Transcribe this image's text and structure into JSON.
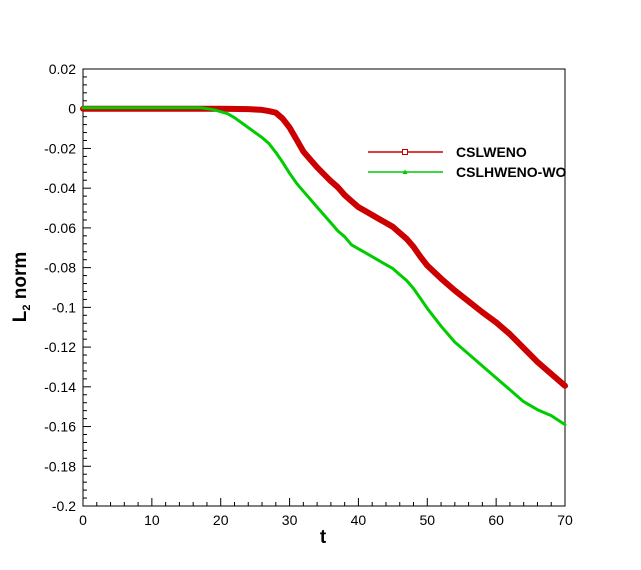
{
  "chart_data": {
    "type": "line",
    "title": "",
    "xlabel": "t",
    "ylabel_main": "L",
    "ylabel_sub": "2",
    "ylabel_rest": " norm",
    "xlim": [
      0,
      70
    ],
    "ylim": [
      -0.2,
      0.02
    ],
    "xticks": [
      0,
      10,
      20,
      30,
      40,
      50,
      60,
      70
    ],
    "xtick_labels": [
      "0",
      "10",
      "20",
      "30",
      "40",
      "50",
      "60",
      "70"
    ],
    "yticks": [
      0.02,
      0,
      -0.02,
      -0.04,
      -0.06,
      -0.08,
      -0.1,
      -0.12,
      -0.14,
      -0.16,
      -0.18,
      -0.2
    ],
    "ytick_labels": [
      "0.02",
      "0",
      "-0.02",
      "-0.04",
      "-0.06",
      "-0.08",
      "-0.1",
      "-0.12",
      "-0.14",
      "-0.16",
      "-0.18",
      "-0.2"
    ],
    "grid": false,
    "legend_position": "top-right",
    "series": [
      {
        "name": "CSLWENO",
        "color": "#cc0000",
        "marker": "square",
        "x": [
          0,
          10,
          20,
          24,
          26,
          27,
          28,
          29,
          30,
          31,
          32,
          33,
          34,
          35,
          36,
          37,
          38,
          39,
          40,
          41,
          42,
          43,
          44,
          45,
          46,
          47,
          48,
          49,
          50,
          52,
          54,
          56,
          58,
          60,
          62,
          64,
          66,
          68,
          70
        ],
        "values": [
          0.0,
          0.0,
          0.0,
          -0.0002,
          -0.0006,
          -0.0012,
          -0.002,
          -0.005,
          -0.0095,
          -0.0155,
          -0.0215,
          -0.0255,
          -0.0295,
          -0.033,
          -0.0365,
          -0.0395,
          -0.0435,
          -0.0465,
          -0.0495,
          -0.0515,
          -0.0535,
          -0.0555,
          -0.0575,
          -0.0595,
          -0.0625,
          -0.0655,
          -0.0695,
          -0.0745,
          -0.079,
          -0.0855,
          -0.0915,
          -0.097,
          -0.1025,
          -0.1075,
          -0.1135,
          -0.1205,
          -0.1275,
          -0.1335,
          -0.1395
        ]
      },
      {
        "name": "CSLHWENO-WO",
        "color": "#00cc00",
        "marker": "triangle",
        "x": [
          0,
          10,
          17,
          19,
          21,
          22,
          23,
          24,
          25,
          26,
          27,
          28,
          29,
          30,
          31,
          32,
          33,
          34,
          35,
          36,
          37,
          38,
          39,
          40,
          41,
          42,
          43,
          44,
          45,
          46,
          47,
          48,
          49,
          50,
          52,
          54,
          56,
          58,
          60,
          62,
          64,
          66,
          68,
          70
        ],
        "values": [
          0.0005,
          0.0005,
          0.0005,
          -0.0005,
          -0.0025,
          -0.0045,
          -0.007,
          -0.0095,
          -0.012,
          -0.0145,
          -0.0175,
          -0.022,
          -0.027,
          -0.0325,
          -0.0375,
          -0.0415,
          -0.0455,
          -0.0495,
          -0.0535,
          -0.0575,
          -0.0615,
          -0.0645,
          -0.0685,
          -0.0705,
          -0.0725,
          -0.0745,
          -0.0765,
          -0.0785,
          -0.0805,
          -0.0835,
          -0.0865,
          -0.0905,
          -0.0955,
          -0.1005,
          -0.1095,
          -0.1175,
          -0.1235,
          -0.1295,
          -0.1355,
          -0.1415,
          -0.1475,
          -0.1515,
          -0.1545,
          -0.159
        ]
      }
    ]
  }
}
